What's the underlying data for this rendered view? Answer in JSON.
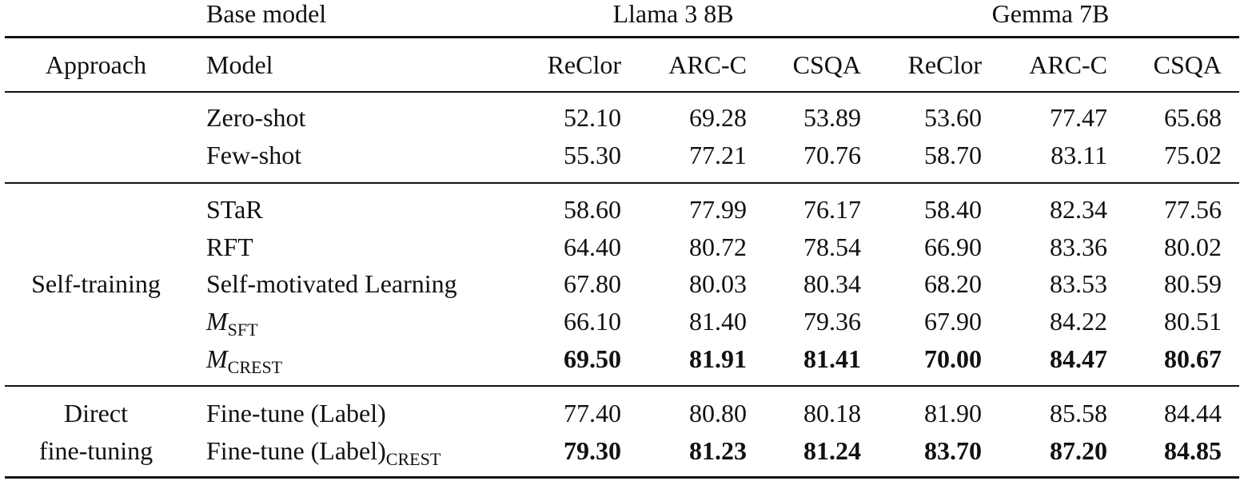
{
  "header": {
    "base_model_label": "Base model",
    "groups": [
      "Llama 3 8B",
      "Gemma 7B"
    ],
    "approach_label": "Approach",
    "model_label": "Model",
    "columns": [
      "ReClor",
      "ARC-C",
      "CSQA",
      "ReClor",
      "ARC-C",
      "CSQA"
    ]
  },
  "sections": [
    {
      "approach": "",
      "rows": [
        {
          "model": "Zero-shot",
          "values": [
            "52.10",
            "69.28",
            "53.89",
            "53.60",
            "77.47",
            "65.68"
          ],
          "bold": false
        },
        {
          "model": "Few-shot",
          "values": [
            "55.30",
            "77.21",
            "70.76",
            "58.70",
            "83.11",
            "75.02"
          ],
          "bold": false
        }
      ]
    },
    {
      "approach": "Self-training",
      "rows": [
        {
          "model": "STaR",
          "values": [
            "58.60",
            "77.99",
            "76.17",
            "58.40",
            "82.34",
            "77.56"
          ],
          "bold": false
        },
        {
          "model": "RFT",
          "values": [
            "64.40",
            "80.72",
            "78.54",
            "66.90",
            "83.36",
            "80.02"
          ],
          "bold": false
        },
        {
          "model": "Self-motivated Learning",
          "values": [
            "67.80",
            "80.03",
            "80.34",
            "68.20",
            "83.53",
            "80.59"
          ],
          "bold": false
        },
        {
          "model_main": "M",
          "model_sub": "SFT",
          "values": [
            "66.10",
            "81.40",
            "79.36",
            "67.90",
            "84.22",
            "80.51"
          ],
          "bold": false
        },
        {
          "model_main": "M",
          "model_sub": "CREST",
          "values": [
            "69.50",
            "81.91",
            "81.41",
            "70.00",
            "84.47",
            "80.67"
          ],
          "bold": true
        }
      ]
    },
    {
      "approach_line1": "Direct",
      "approach_line2": "fine-tuning",
      "rows": [
        {
          "model": "Fine-tune (Label)",
          "values": [
            "77.40",
            "80.80",
            "80.18",
            "81.90",
            "85.58",
            "84.44"
          ],
          "bold": false
        },
        {
          "model_main": "Fine-tune (Label)",
          "model_sub": "CREST",
          "values": [
            "79.30",
            "81.23",
            "81.24",
            "83.70",
            "87.20",
            "84.85"
          ],
          "bold": true
        }
      ]
    }
  ]
}
